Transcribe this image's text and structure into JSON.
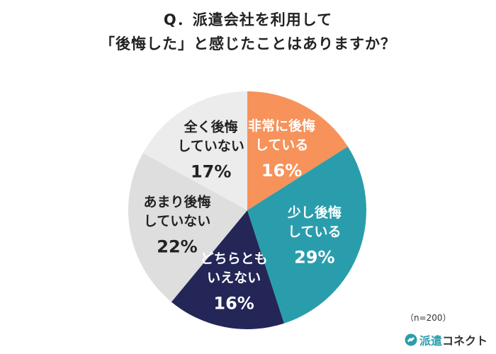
{
  "title": {
    "line1": "Q．派遣会社を利用して",
    "line2": "「後悔した」と感じたことはありますか？"
  },
  "note": "（n=200）",
  "logo": {
    "accent": "派遣",
    "rest": "コネクト"
  },
  "chart_data": {
    "type": "pie",
    "start": "12 o'clock, clockwise",
    "slices": [
      {
        "label_lines": [
          "非常に後悔",
          "している"
        ],
        "value": 16,
        "display": "16%",
        "color": "#f7925a",
        "text_color": "#ffffff"
      },
      {
        "label_lines": [
          "少し後悔",
          "している"
        ],
        "value": 29,
        "display": "29%",
        "color": "#2a9dac",
        "text_color": "#ffffff"
      },
      {
        "label_lines": [
          "どちらとも",
          "いえない"
        ],
        "value": 16,
        "display": "16%",
        "color": "#232656",
        "text_color": "#ffffff"
      },
      {
        "label_lines": [
          "あまり後悔",
          "していない"
        ],
        "value": 22,
        "display": "22%",
        "color": "#dedede",
        "text_color": "#222222"
      },
      {
        "label_lines": [
          "全く後悔",
          "していない"
        ],
        "value": 17,
        "display": "17%",
        "color": "#ececec",
        "text_color": "#222222"
      }
    ]
  }
}
